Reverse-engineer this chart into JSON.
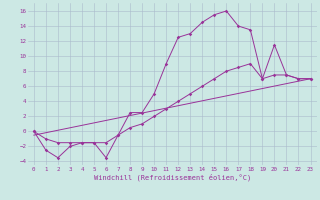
{
  "xlabel": "Windchill (Refroidissement éolien,°C)",
  "bg_color": "#cce8e4",
  "grid_color": "#aabbcc",
  "line_color": "#993399",
  "xlim": [
    -0.5,
    23.5
  ],
  "ylim": [
    -4.5,
    17
  ],
  "xticks": [
    0,
    1,
    2,
    3,
    4,
    5,
    6,
    7,
    8,
    9,
    10,
    11,
    12,
    13,
    14,
    15,
    16,
    17,
    18,
    19,
    20,
    21,
    22,
    23
  ],
  "yticks": [
    -4,
    -2,
    0,
    2,
    4,
    6,
    8,
    10,
    12,
    14,
    16
  ],
  "line1_x": [
    0,
    1,
    2,
    3,
    4,
    5,
    6,
    7,
    8,
    9,
    10,
    11,
    12,
    13,
    14,
    15,
    16,
    17,
    18,
    19,
    20,
    21,
    22,
    23
  ],
  "line1_y": [
    0,
    -2.5,
    -3.5,
    -2,
    -1.5,
    -1.5,
    -3.5,
    -0.5,
    2.5,
    2.5,
    5,
    9,
    12.5,
    13,
    14.5,
    15.5,
    16,
    14,
    13.5,
    7,
    11.5,
    7.5,
    7,
    7
  ],
  "line2_x": [
    0,
    1,
    2,
    3,
    4,
    5,
    6,
    7,
    8,
    9,
    10,
    11,
    12,
    13,
    14,
    15,
    16,
    17,
    18,
    19,
    20,
    21,
    22,
    23
  ],
  "line2_y": [
    0,
    -1,
    -1.5,
    -1.5,
    -1.5,
    -1.5,
    -1.5,
    -0.5,
    0.5,
    1,
    2,
    3,
    4,
    5,
    6,
    7,
    8,
    8.5,
    9,
    7,
    7.5,
    7.5,
    7,
    7
  ],
  "line3_x": [
    0,
    23
  ],
  "line3_y": [
    -0.5,
    7
  ]
}
